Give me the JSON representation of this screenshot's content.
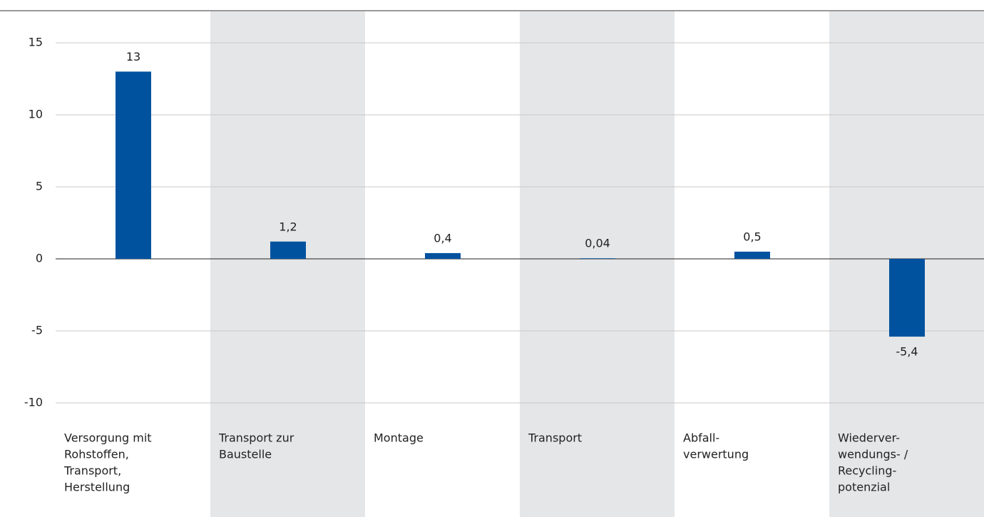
{
  "chart_data": {
    "type": "bar",
    "categories": [
      [
        "Versorgung mit",
        "Rohstoffen,",
        "Transport,",
        "Herstellung"
      ],
      [
        "Transport zur",
        "Baustelle"
      ],
      [
        "Montage"
      ],
      [
        "Transport"
      ],
      [
        "Abfall-",
        "verwertung"
      ],
      [
        "Wiederver-",
        "wendungs- /",
        "Recycling-",
        "potenzial"
      ]
    ],
    "values": [
      13,
      1.2,
      0.4,
      0.04,
      0.5,
      -5.4
    ],
    "value_labels": [
      "13",
      "1,2",
      "0,4",
      "0,04",
      "0,5",
      "-5,4"
    ],
    "color": "#00529f",
    "ylim": [
      -10,
      15
    ],
    "yticks": [
      -10,
      -5,
      0,
      5,
      10,
      15
    ],
    "grid": true
  }
}
